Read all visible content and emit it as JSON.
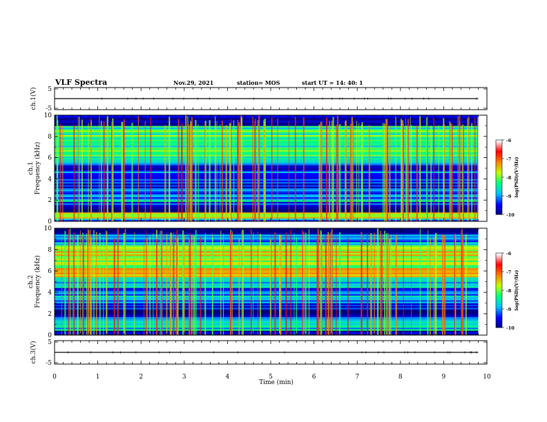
{
  "header": {
    "title": "VLF Spectra",
    "date": "Nov.29, 2021",
    "station": "station= MOS",
    "start": "start  UT =  14: 40: 1"
  },
  "chart_data": [
    {
      "type": "line",
      "panel": "ch1-waveform",
      "ylabel": "ch.1(V)",
      "ylim": [
        -5,
        5
      ],
      "y_ticks": [
        "5",
        "-5"
      ],
      "xlim": [
        0,
        10
      ],
      "series": [
        {
          "x": [
            0,
            9.8
          ],
          "values": [
            0,
            0
          ]
        }
      ]
    },
    {
      "type": "heatmap",
      "panel": "ch1-spectrogram",
      "ylabel": "ch.1\nFrequency (kHz)",
      "xlim": [
        0,
        10
      ],
      "data_end_min": 9.8,
      "ylim": [
        0,
        10
      ],
      "y_ticks": [
        "0",
        "2",
        "4",
        "6",
        "8",
        "10"
      ],
      "colorbar": {
        "label": "log(PSD)(V²/Hz)",
        "range": [
          -10,
          -6
        ],
        "ticks": [
          "-6",
          "-7",
          "-8",
          "-9",
          "-10"
        ]
      },
      "bands": [
        {
          "from": 0.0,
          "to": 0.25,
          "level": -9.2
        },
        {
          "from": 0.25,
          "to": 0.9,
          "level": -7.8
        },
        {
          "from": 0.9,
          "to": 1.8,
          "level": -9.6
        },
        {
          "from": 1.8,
          "to": 2.2,
          "level": -8.6
        },
        {
          "from": 2.2,
          "to": 5.5,
          "level": -9.3
        },
        {
          "from": 5.5,
          "to": 9.0,
          "level": -8.3
        },
        {
          "from": 9.0,
          "to": 10.0,
          "level": -10.0
        }
      ]
    },
    {
      "type": "heatmap",
      "panel": "ch2-spectrogram",
      "ylabel": "ch.2\nFrequency (kHz)",
      "xlim": [
        0,
        10
      ],
      "data_end_min": 9.8,
      "ylim": [
        0,
        10
      ],
      "y_ticks": [
        "0",
        "2",
        "4",
        "6",
        "8",
        "10"
      ],
      "colorbar": {
        "label": "log(PSD)(V²/Hz)",
        "range": [
          -10,
          -6
        ],
        "ticks": [
          "-6",
          "-7",
          "-8",
          "-9",
          "-10"
        ]
      },
      "bands": [
        {
          "from": 0.0,
          "to": 0.5,
          "level": -9.8
        },
        {
          "from": 0.5,
          "to": 1.5,
          "level": -8.8
        },
        {
          "from": 1.5,
          "to": 3.0,
          "level": -9.5
        },
        {
          "from": 3.0,
          "to": 5.5,
          "level": -9.0
        },
        {
          "from": 5.5,
          "to": 8.5,
          "level": -7.6
        },
        {
          "from": 8.5,
          "to": 9.5,
          "level": -8.8
        },
        {
          "from": 9.5,
          "to": 10.0,
          "level": -10.0
        }
      ]
    },
    {
      "type": "line",
      "panel": "ch3-waveform",
      "ylabel": "ch.3(V)",
      "ylim": [
        -5,
        5
      ],
      "y_ticks": [
        "5",
        "-5"
      ],
      "xlim": [
        0,
        10
      ],
      "series": [
        {
          "x": [
            0,
            9.8
          ],
          "values": [
            0,
            0
          ]
        }
      ]
    }
  ],
  "xaxis": {
    "label": "Time  (min)",
    "ticks": [
      "0",
      "1",
      "2",
      "3",
      "4",
      "5",
      "6",
      "7",
      "8",
      "9",
      "10"
    ]
  },
  "colors": {
    "scale": [
      "#000080",
      "#0000ff",
      "#00c0ff",
      "#00ff80",
      "#c0ff00",
      "#ff8000",
      "#ff0000",
      "#ffffff"
    ]
  }
}
